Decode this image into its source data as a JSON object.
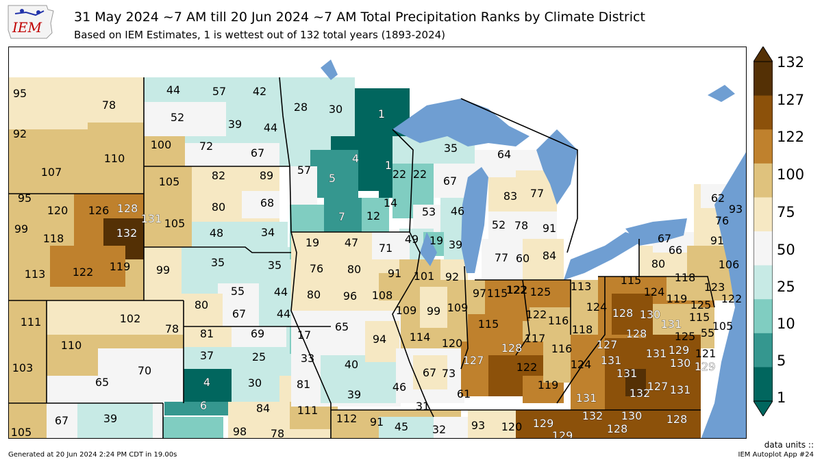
{
  "header": {
    "title": "31 May 2024 ~7 AM till 20 Jun 2024 ~7 AM Total Precipitation Ranks by Climate District",
    "subtitle": "Based on IEM Estimates, 1 is wettest out of 132 total years (1893-2024)",
    "logo_text": "IEM"
  },
  "colorbar": {
    "ticks": [
      "132",
      "127",
      "122",
      "100",
      "75",
      "50",
      "25",
      "10",
      "5",
      "1"
    ],
    "colors": [
      "#543005",
      "#8c510a",
      "#bf812d",
      "#dfc27d",
      "#f6e8c3",
      "#f5f5f5",
      "#c7eae5",
      "#80cdc1",
      "#35978f",
      "#01665e"
    ],
    "units_label": "data units ::"
  },
  "footer": {
    "generated": "Generated at 20 Jun 2024 2:24 PM CDT in 19.00s",
    "app": "IEM Autoplot App #24"
  },
  "districts": [
    {
      "v": "95"
    },
    {
      "v": "78"
    },
    {
      "v": "92"
    },
    {
      "v": "110"
    },
    {
      "v": "107"
    },
    {
      "v": "44"
    },
    {
      "v": "57"
    },
    {
      "v": "42"
    },
    {
      "v": "52"
    },
    {
      "v": "39"
    },
    {
      "v": "44"
    },
    {
      "v": "100"
    },
    {
      "v": "72"
    },
    {
      "v": "67"
    },
    {
      "v": "28"
    },
    {
      "v": "30"
    },
    {
      "v": "1"
    },
    {
      "v": "4"
    },
    {
      "v": "1"
    },
    {
      "v": "57"
    },
    {
      "v": "5"
    },
    {
      "v": "22"
    },
    {
      "v": "7"
    },
    {
      "v": "12"
    },
    {
      "v": "35"
    },
    {
      "v": "22"
    },
    {
      "v": "67"
    },
    {
      "v": "14"
    },
    {
      "v": "53"
    },
    {
      "v": "46"
    },
    {
      "v": "49"
    },
    {
      "v": "19"
    },
    {
      "v": "39"
    },
    {
      "v": "64"
    },
    {
      "v": "83"
    },
    {
      "v": "77"
    },
    {
      "v": "52"
    },
    {
      "v": "78"
    },
    {
      "v": "91"
    },
    {
      "v": "77"
    },
    {
      "v": "60"
    },
    {
      "v": "84"
    },
    {
      "v": "105"
    },
    {
      "v": "82"
    },
    {
      "v": "89"
    },
    {
      "v": "80"
    },
    {
      "v": "68"
    },
    {
      "v": "105"
    },
    {
      "v": "48"
    },
    {
      "v": "34"
    },
    {
      "v": "95"
    },
    {
      "v": "120"
    },
    {
      "v": "126"
    },
    {
      "v": "128"
    },
    {
      "v": "131"
    },
    {
      "v": "99"
    },
    {
      "v": "118"
    },
    {
      "v": "132"
    },
    {
      "v": "113"
    },
    {
      "v": "122"
    },
    {
      "v": "119"
    },
    {
      "v": "19"
    },
    {
      "v": "47"
    },
    {
      "v": "71"
    },
    {
      "v": "99"
    },
    {
      "v": "35"
    },
    {
      "v": "35"
    },
    {
      "v": "76"
    },
    {
      "v": "80"
    },
    {
      "v": "91"
    },
    {
      "v": "55"
    },
    {
      "v": "44"
    },
    {
      "v": "80"
    },
    {
      "v": "96"
    },
    {
      "v": "108"
    },
    {
      "v": "80"
    },
    {
      "v": "67"
    },
    {
      "v": "44"
    },
    {
      "v": "101"
    },
    {
      "v": "92"
    },
    {
      "v": "109"
    },
    {
      "v": "99"
    },
    {
      "v": "109"
    },
    {
      "v": "114"
    },
    {
      "v": "120"
    },
    {
      "v": "97"
    },
    {
      "v": "115"
    },
    {
      "v": "122"
    },
    {
      "v": "125"
    },
    {
      "v": "113"
    },
    {
      "v": "111"
    },
    {
      "v": "102"
    },
    {
      "v": "78"
    },
    {
      "v": "110"
    },
    {
      "v": "103"
    },
    {
      "v": "70"
    },
    {
      "v": "65"
    },
    {
      "v": "81"
    },
    {
      "v": "69"
    },
    {
      "v": "17"
    },
    {
      "v": "37"
    },
    {
      "v": "25"
    },
    {
      "v": "33"
    },
    {
      "v": "4"
    },
    {
      "v": "30"
    },
    {
      "v": "81"
    },
    {
      "v": "6"
    },
    {
      "v": "84"
    },
    {
      "v": "111"
    },
    {
      "v": "65"
    },
    {
      "v": "94"
    },
    {
      "v": "40"
    },
    {
      "v": "39"
    },
    {
      "v": "46"
    },
    {
      "v": "67"
    },
    {
      "v": "73"
    },
    {
      "v": "61"
    },
    {
      "v": "31"
    },
    {
      "v": "122"
    },
    {
      "v": "116"
    },
    {
      "v": "124"
    },
    {
      "v": "122"
    },
    {
      "v": "115"
    },
    {
      "v": "117"
    },
    {
      "v": "116"
    },
    {
      "v": "118"
    },
    {
      "v": "127"
    },
    {
      "v": "128"
    },
    {
      "v": "122"
    },
    {
      "v": "119"
    },
    {
      "v": "115"
    },
    {
      "v": "118"
    },
    {
      "v": "124"
    },
    {
      "v": "119"
    },
    {
      "v": "125"
    },
    {
      "v": "123"
    },
    {
      "v": "128"
    },
    {
      "v": "130"
    },
    {
      "v": "122"
    },
    {
      "v": "131"
    },
    {
      "v": "115"
    },
    {
      "v": "125"
    },
    {
      "v": "55"
    },
    {
      "v": "105"
    },
    {
      "v": "128"
    },
    {
      "v": "127"
    },
    {
      "v": "124"
    },
    {
      "v": "131"
    },
    {
      "v": "131"
    },
    {
      "v": "129"
    },
    {
      "v": "121"
    },
    {
      "v": "130"
    },
    {
      "v": "129"
    },
    {
      "v": "131"
    },
    {
      "v": "131"
    },
    {
      "v": "132"
    },
    {
      "v": "127"
    },
    {
      "v": "131"
    },
    {
      "v": "62"
    },
    {
      "v": "93"
    },
    {
      "v": "76"
    },
    {
      "v": "67"
    },
    {
      "v": "66"
    },
    {
      "v": "91"
    },
    {
      "v": "80"
    },
    {
      "v": "106"
    },
    {
      "v": "67"
    },
    {
      "v": "39"
    },
    {
      "v": "105"
    },
    {
      "v": "98"
    },
    {
      "v": "78"
    },
    {
      "v": "112"
    },
    {
      "v": "91"
    },
    {
      "v": "45"
    },
    {
      "v": "32"
    },
    {
      "v": "93"
    },
    {
      "v": "120"
    },
    {
      "v": "129"
    },
    {
      "v": "132"
    },
    {
      "v": "130"
    },
    {
      "v": "128"
    },
    {
      "v": "128"
    },
    {
      "v": "129"
    }
  ]
}
